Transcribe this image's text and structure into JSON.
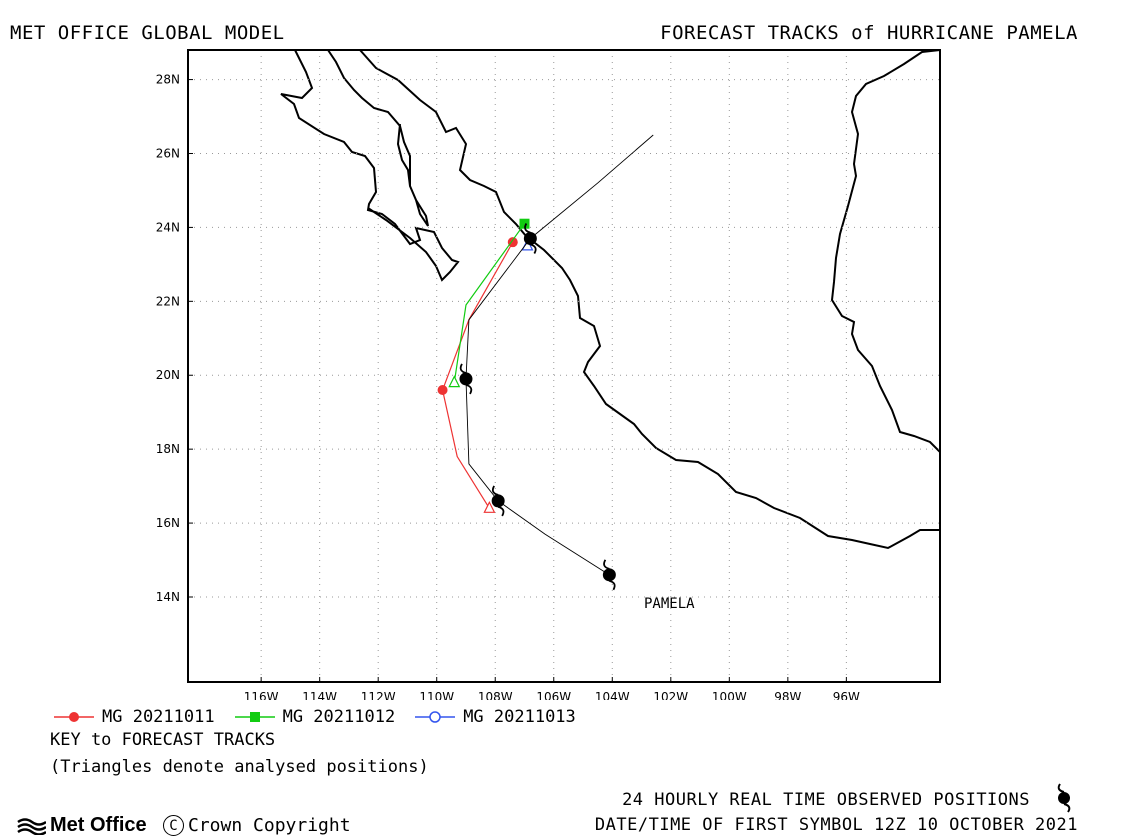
{
  "header": {
    "left": "MET OFFICE GLOBAL MODEL",
    "right": "FORECAST TRACKS of HURRICANE PAMELA"
  },
  "legend": [
    {
      "label": "MG 20211011",
      "color": "#ee3333",
      "marker": "circle-filled"
    },
    {
      "label": "MG 20211012",
      "color": "#11cc11",
      "marker": "square-filled"
    },
    {
      "label": "MG 20211013",
      "color": "#3355ee",
      "marker": "circle-open"
    }
  ],
  "key": {
    "title": "KEY to FORECAST TRACKS",
    "note": "(Triangles denote analysed positions)"
  },
  "footer": {
    "observed": "24 HOURLY REAL TIME OBSERVED POSITIONS",
    "datetime": "DATE/TIME OF FIRST SYMBOL 12Z 10 OCTOBER 2021",
    "logo": "Met Office",
    "copyright": "Crown Copyright"
  },
  "chart_data": {
    "type": "line",
    "title": "FORECAST TRACKS of HURRICANE PAMELA",
    "xlim": [
      -118.5,
      -92.8
    ],
    "ylim": [
      11.7,
      28.8
    ],
    "x_ticks": [
      -116,
      -114,
      -112,
      -110,
      -108,
      -106,
      -104,
      -102,
      -100,
      -98,
      -96
    ],
    "x_tick_labels": [
      "116W",
      "114W",
      "112W",
      "110W",
      "108W",
      "106W",
      "104W",
      "102W",
      "100W",
      "98W",
      "96W"
    ],
    "y_ticks": [
      14,
      16,
      18,
      20,
      22,
      24,
      26,
      28
    ],
    "y_tick_labels": [
      "14N",
      "16N",
      "18N",
      "20N",
      "22N",
      "24N",
      "26N",
      "28N"
    ],
    "grid": true,
    "storm_name": "PAMELA",
    "observed_track": {
      "name": "24 HOURLY REAL TIME OBSERVED POSITIONS",
      "points": [
        [
          -102.6,
          26.5
        ],
        [
          -104.5,
          25.2
        ],
        [
          -106.8,
          23.7
        ],
        [
          -108.9,
          21.5
        ],
        [
          -109.0,
          19.9
        ],
        [
          -108.9,
          17.6
        ],
        [
          -107.9,
          16.6
        ],
        [
          -106.3,
          15.7
        ],
        [
          -104.1,
          14.6
        ]
      ],
      "symbols": [
        [
          -104.1,
          14.6
        ],
        [
          -107.9,
          16.6
        ],
        [
          -109.0,
          19.9
        ],
        [
          -106.8,
          23.7
        ]
      ]
    },
    "series": [
      {
        "name": "MG 20211011",
        "color": "#ee3333",
        "points": [
          [
            -108.2,
            16.4
          ],
          [
            -109.3,
            17.8
          ],
          [
            -109.8,
            19.6
          ],
          [
            -108.9,
            21.5
          ],
          [
            -107.4,
            23.6
          ]
        ],
        "markers": [
          [
            -109.8,
            19.6
          ],
          [
            -107.4,
            23.6
          ]
        ],
        "analysed": [
          -108.2,
          16.4
        ]
      },
      {
        "name": "MG 20211012",
        "color": "#11cc11",
        "points": [
          [
            -109.4,
            19.8
          ],
          [
            -109.0,
            21.9
          ],
          [
            -107.0,
            24.1
          ]
        ],
        "markers": [
          [
            -107.0,
            24.1
          ]
        ],
        "analysed": [
          -109.4,
          19.8
        ]
      },
      {
        "name": "MG 20211013",
        "color": "#3355ee",
        "points": [
          [
            -106.9,
            23.5
          ],
          [
            -106.8,
            23.7
          ]
        ],
        "markers": [],
        "analysed": [
          -106.9,
          23.5
        ]
      }
    ]
  }
}
